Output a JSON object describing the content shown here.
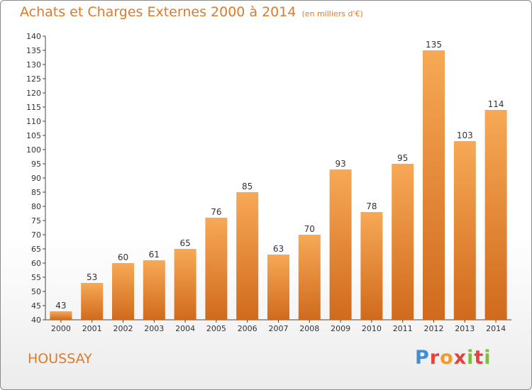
{
  "header": {
    "title": "Achats et Charges Externes 2000 à 2014",
    "subtitle": "(en milliers d'€)"
  },
  "footer": {
    "commune": "HOUSSAY",
    "brand": [
      "P",
      "r",
      "o",
      "x",
      "i",
      "t",
      "i"
    ],
    "brand_colors": [
      "#3f8fd2",
      "#e2433f",
      "#f19a2e",
      "#e2433f",
      "#7cbf3a",
      "#e2433f",
      "#7cbf3a"
    ]
  },
  "colors": {
    "bar_light": "#f7a956",
    "bar_dark": "#d06a1c",
    "accent": "#e07a28"
  },
  "chart_data": {
    "type": "bar",
    "title": "Achats et Charges Externes 2000 à 2014",
    "subtitle": "(en milliers d'€)",
    "categories": [
      "2000",
      "2001",
      "2002",
      "2003",
      "2004",
      "2005",
      "2006",
      "2007",
      "2008",
      "2009",
      "2010",
      "2011",
      "2012",
      "2013",
      "2014"
    ],
    "values": [
      43,
      53,
      60,
      61,
      65,
      76,
      85,
      63,
      70,
      93,
      78,
      95,
      135,
      103,
      114
    ],
    "ylim": [
      40,
      140
    ],
    "yticks": [
      40,
      45,
      50,
      55,
      60,
      65,
      70,
      75,
      80,
      85,
      90,
      95,
      100,
      105,
      110,
      115,
      120,
      125,
      130,
      135,
      140
    ],
    "grid": false,
    "data_labels": true
  }
}
